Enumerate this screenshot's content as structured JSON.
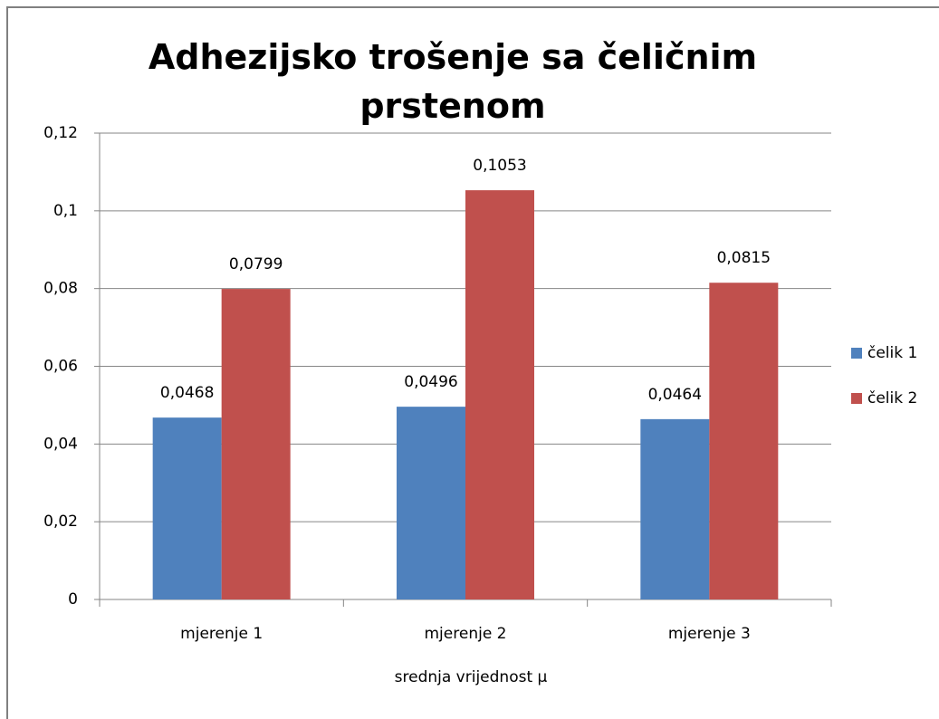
{
  "chart_data": {
    "type": "bar",
    "title": "Adhezijsko trošenje sa čeličnim prstenom",
    "x_label": "srednja vrijednost  µ",
    "categories": [
      "mjerenje 1",
      "mjerenje 2",
      "mjerenje 3"
    ],
    "series": [
      {
        "name": "čelik 1",
        "color": "#4f81bd",
        "values": [
          0.0468,
          0.0496,
          0.0464
        ],
        "value_labels": [
          "0,0468",
          "0,0496",
          "0,0464"
        ]
      },
      {
        "name": "čelik 2",
        "color": "#c0504d",
        "values": [
          0.0799,
          0.1053,
          0.0815
        ],
        "value_labels": [
          "0,0799",
          "0,1053",
          "0,0815"
        ]
      }
    ],
    "ylim": [
      0,
      0.12
    ],
    "yticks": [
      0,
      {
        "value": 0.02,
        "label": "0,02"
      },
      {
        "value": 0.04,
        "label": "0,04"
      },
      {
        "value": 0.06,
        "label": "0,06"
      },
      {
        "value": 0.08,
        "label": "0,08"
      },
      {
        "value": 0.1,
        "label": "0,1"
      },
      {
        "value": 0.12,
        "label": "0,12"
      }
    ],
    "grid": true,
    "legend": "right"
  }
}
